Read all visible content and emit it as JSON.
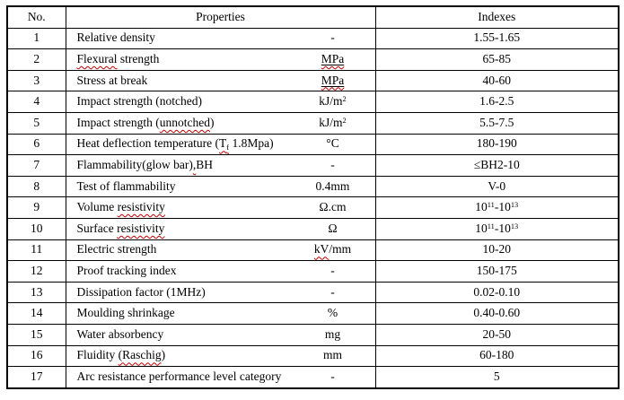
{
  "colors": {
    "background": "#ffffff",
    "border": "#000000",
    "text": "#000000",
    "spellcheck_squiggle": "#c00000"
  },
  "table": {
    "columns": [
      "No.",
      "Properties",
      "Indexes"
    ],
    "rows": [
      {
        "no": "1",
        "property": [
          {
            "t": "Relative density"
          }
        ],
        "unit": [
          {
            "t": "-"
          }
        ],
        "index": [
          {
            "t": "1.55-1.65"
          }
        ]
      },
      {
        "no": "2",
        "property": [
          {
            "t": "Flexural",
            "squiggle": true
          },
          {
            "t": " strength"
          }
        ],
        "unit": [
          {
            "underline": true,
            "parts": [
              {
                "t": "MPa",
                "squiggle": true
              }
            ]
          }
        ],
        "index": [
          {
            "t": "65-85"
          }
        ]
      },
      {
        "no": "3",
        "property": [
          {
            "t": "Stress at break"
          }
        ],
        "unit": [
          {
            "underline": true,
            "parts": [
              {
                "t": "MPa",
                "squiggle": true
              }
            ]
          }
        ],
        "index": [
          {
            "t": "40-60"
          }
        ]
      },
      {
        "no": "4",
        "property": [
          {
            "t": "Impact strength (notched)"
          }
        ],
        "unit": [
          {
            "t": "kJ/m"
          },
          {
            "t": "2",
            "sup": true
          }
        ],
        "index": [
          {
            "t": "1.6-2.5"
          }
        ]
      },
      {
        "no": "5",
        "property": [
          {
            "t": "Impact strength ("
          },
          {
            "t": "unnotched",
            "squiggle": true
          },
          {
            "t": ")"
          }
        ],
        "unit": [
          {
            "t": "kJ/m"
          },
          {
            "t": "2",
            "sup": true
          }
        ],
        "index": [
          {
            "t": "5.5-7.5"
          }
        ]
      },
      {
        "no": "6",
        "property": [
          {
            "t": "Heat deflection temperature ("
          },
          {
            "squiggle": true,
            "parts": [
              {
                "t": "T"
              },
              {
                "t": "f",
                "sub": true
              }
            ]
          },
          {
            "t": " 1.8Mpa)"
          }
        ],
        "unit": [
          {
            "t": "°C"
          }
        ],
        "index": [
          {
            "t": "180-190"
          }
        ]
      },
      {
        "no": "7",
        "property": [
          {
            "t": "Flammability(glow bar)"
          },
          {
            "t": ",",
            "squiggle": true
          },
          {
            "t": "BH"
          }
        ],
        "unit": [
          {
            "t": "-"
          }
        ],
        "index": [
          {
            "t": "≤BH2-10"
          }
        ]
      },
      {
        "no": "8",
        "property": [
          {
            "t": "Test of flammability"
          }
        ],
        "unit": [
          {
            "t": "0.4mm"
          }
        ],
        "index": [
          {
            "t": "V-0"
          }
        ]
      },
      {
        "no": "9",
        "property": [
          {
            "t": "Volume "
          },
          {
            "t": "resistivity",
            "squiggle": true
          }
        ],
        "unit": [
          {
            "t": "Ω.cm"
          }
        ],
        "index": [
          {
            "t": "10"
          },
          {
            "t": "11",
            "sup": true
          },
          {
            "t": "-10"
          },
          {
            "t": "13",
            "sup": true
          }
        ]
      },
      {
        "no": "10",
        "property": [
          {
            "t": "Surface "
          },
          {
            "t": "resistivity",
            "squiggle": true
          }
        ],
        "unit": [
          {
            "t": "Ω"
          }
        ],
        "index": [
          {
            "t": "10"
          },
          {
            "t": "11",
            "sup": true
          },
          {
            "t": "-10"
          },
          {
            "t": "13",
            "sup": true
          }
        ]
      },
      {
        "no": "11",
        "property": [
          {
            "t": "Electric strength"
          }
        ],
        "unit": [
          {
            "t": "kV",
            "squiggle": true
          },
          {
            "t": "/mm"
          }
        ],
        "index": [
          {
            "t": "10-20"
          }
        ]
      },
      {
        "no": "12",
        "property": [
          {
            "t": "Proof tracking index"
          }
        ],
        "unit": [
          {
            "t": "-"
          }
        ],
        "index": [
          {
            "t": "150-175"
          }
        ]
      },
      {
        "no": "13",
        "property": [
          {
            "t": "Dissipation factor (1MHz)"
          }
        ],
        "unit": [
          {
            "t": "-"
          }
        ],
        "index": [
          {
            "t": "0.02-0.10"
          }
        ]
      },
      {
        "no": "14",
        "property": [
          {
            "t": "Moulding shrinkage"
          }
        ],
        "unit": [
          {
            "t": "%"
          }
        ],
        "index": [
          {
            "t": "0.40-0.60"
          }
        ]
      },
      {
        "no": "15",
        "property": [
          {
            "t": "Water absorbency"
          }
        ],
        "unit": [
          {
            "t": "mg"
          }
        ],
        "index": [
          {
            "t": "20-50"
          }
        ]
      },
      {
        "no": "16",
        "property": [
          {
            "t": "Fluidity "
          },
          {
            "t": "(Raschig",
            "squiggle": true
          },
          {
            "t": ")"
          }
        ],
        "unit": [
          {
            "t": "mm"
          }
        ],
        "index": [
          {
            "t": "60-180"
          }
        ]
      },
      {
        "no": "17",
        "property": [
          {
            "t": "Arc resistance performance level category"
          }
        ],
        "unit": [
          {
            "t": "-"
          }
        ],
        "index": [
          {
            "t": "5"
          }
        ]
      }
    ]
  }
}
